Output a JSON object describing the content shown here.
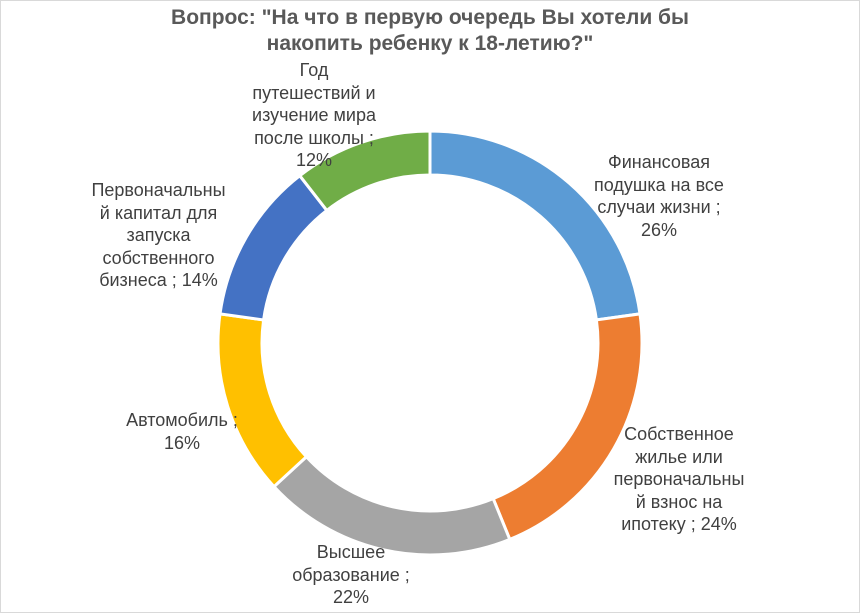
{
  "chart_data": {
    "type": "donut",
    "title_lines": [
      "Вопрос: \"На что в первую очередь Вы хотели бы",
      "накопить ребенку к 18-летию?\""
    ],
    "categories": [
      "Финансовая подушка на все случаи жизни",
      "Собственное жилье или первоначальный взнос на ипотеку",
      "Высшее образование",
      "Автомобиль",
      "Первоначальный капитал для запуска собственного бизнеса",
      "Год путешествий и изучение мира после школы"
    ],
    "values": [
      26,
      24,
      22,
      16,
      14,
      12
    ],
    "unit": "%",
    "colors": [
      "#5b9bd5",
      "#ed7d31",
      "#a5a5a5",
      "#ffc000",
      "#4472c4",
      "#70ad47"
    ],
    "labels": [
      {
        "lines": [
          "Финансовая",
          "подушка на все",
          "случаи жизни ;",
          "26%"
        ]
      },
      {
        "lines": [
          "Собственное",
          "жилье или",
          "первоначальны",
          "й взнос на",
          "ипотеку ; 24%"
        ]
      },
      {
        "lines": [
          "Высшее",
          "образование ;",
          "22%"
        ]
      },
      {
        "lines": [
          "Автомобиль ;",
          "16%"
        ]
      },
      {
        "lines": [
          "Первоначальны",
          "й капитал для",
          "запуска",
          "собственного",
          "бизнеса ; 14%"
        ]
      },
      {
        "lines": [
          "Год",
          "путешествий и",
          "изучение мира",
          "после школы ;",
          "12%"
        ]
      }
    ],
    "legend": "none"
  }
}
